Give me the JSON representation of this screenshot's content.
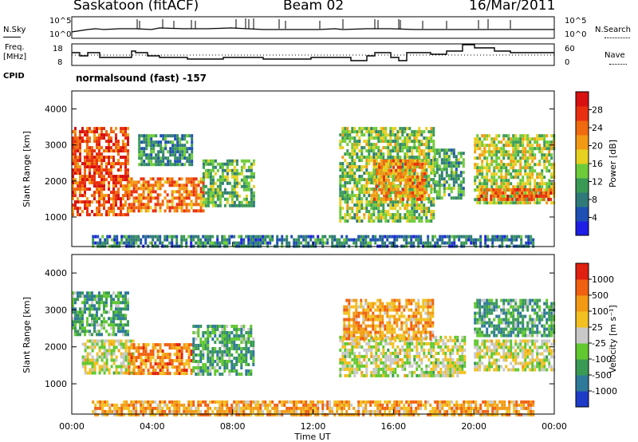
{
  "header": {
    "station": "Saskatoon (fitACF)",
    "beam": "Beam 02",
    "date": "16/Mar/2011"
  },
  "strip_labels": {
    "nsky": "N.Sky",
    "nsky_ticks": [
      "10^5",
      "10^0"
    ],
    "nsearch": "N.Search",
    "nsearch_ticks": [
      "10^5",
      "10^0"
    ],
    "freq": "Freq.",
    "freq_unit": "[MHz]",
    "freq_ticks": [
      "18",
      "8"
    ],
    "nave": "Nave",
    "nave_ticks": [
      "60",
      "0"
    ],
    "cpid": "CPID",
    "cpid_text": "normalsound (fast) -157"
  },
  "chart_data": [
    {
      "type": "heatmap",
      "name": "power-panel",
      "xlabel": "",
      "ylabel": "Slant Range [km]",
      "yticks": [
        "4000",
        "3000",
        "2000",
        "1000"
      ],
      "ylim": [
        180,
        4500
      ],
      "xlim_hours": [
        0,
        24
      ],
      "colorbar": {
        "label": "Power [dB]",
        "ticks": [
          "28",
          "24",
          "20",
          "16",
          "12",
          "8",
          "4"
        ],
        "colors": [
          "#1e1ee6",
          "#1e50b4",
          "#2f7a78",
          "#3a9a55",
          "#6ecb3a",
          "#e6d020",
          "#f29a14",
          "#f06a10",
          "#e83010",
          "#d81010"
        ]
      },
      "regions": [
        {
          "t0": 0.0,
          "t1": 2.8,
          "r0": 1100,
          "r1": 3500,
          "level": 0.8
        },
        {
          "t0": 2.8,
          "t1": 6.5,
          "r0": 1200,
          "r1": 2100,
          "level": 0.72
        },
        {
          "t0": 6.5,
          "t1": 9.0,
          "r0": 1300,
          "r1": 2600,
          "level": 0.4
        },
        {
          "t0": 3.3,
          "t1": 6.0,
          "r0": 2500,
          "r1": 3300,
          "level": 0.3
        },
        {
          "t0": 13.3,
          "t1": 18.0,
          "r0": 900,
          "r1": 3500,
          "level": 0.45
        },
        {
          "t0": 15.0,
          "t1": 17.5,
          "r0": 1500,
          "r1": 2600,
          "level": 0.68
        },
        {
          "t0": 18.0,
          "t1": 19.5,
          "r0": 1500,
          "r1": 2900,
          "level": 0.35
        },
        {
          "t0": 20.0,
          "t1": 24.0,
          "r0": 1400,
          "r1": 3300,
          "level": 0.5
        },
        {
          "t0": 20.2,
          "t1": 23.8,
          "r0": 1500,
          "r1": 1800,
          "level": 0.78
        },
        {
          "t0": 1.0,
          "t1": 23.0,
          "r0": 200,
          "r1": 500,
          "level": 0.25
        }
      ]
    },
    {
      "type": "heatmap",
      "name": "velocity-panel",
      "xlabel": "Time UT",
      "ylabel": "Slant Range [km]",
      "yticks": [
        "4000",
        "3000",
        "2000",
        "1000"
      ],
      "xticks": [
        "00:00",
        "04:00",
        "08:00",
        "12:00",
        "16:00",
        "20:00",
        "00:00"
      ],
      "ylim": [
        180,
        4500
      ],
      "xlim_hours": [
        0,
        24
      ],
      "colorbar": {
        "label": "Velocity [m s⁻¹]",
        "ticks": [
          "1000",
          "500",
          "100",
          "25",
          "-25",
          "-100",
          "-500",
          "-1000"
        ],
        "colors": [
          "#1e3cc8",
          "#2f7a9a",
          "#3a9a55",
          "#62c830",
          "#c8c8c8",
          "#f2c020",
          "#f29a14",
          "#f06010",
          "#e02010"
        ]
      },
      "regions": [
        {
          "t0": 0.0,
          "t1": 2.8,
          "r0": 2300,
          "r1": 3500,
          "level": 0.3
        },
        {
          "t0": 0.5,
          "t1": 3.0,
          "r0": 1300,
          "r1": 2200,
          "level": 0.5
        },
        {
          "t0": 2.8,
          "t1": 6.0,
          "r0": 1300,
          "r1": 2100,
          "level": 0.75
        },
        {
          "t0": 6.0,
          "t1": 9.0,
          "r0": 1300,
          "r1": 2600,
          "level": 0.3
        },
        {
          "t0": 13.3,
          "t1": 19.5,
          "r0": 1200,
          "r1": 2300,
          "level": 0.5
        },
        {
          "t0": 13.5,
          "t1": 18.0,
          "r0": 2200,
          "r1": 3300,
          "level": 0.7
        },
        {
          "t0": 20.0,
          "t1": 24.0,
          "r0": 1400,
          "r1": 2200,
          "level": 0.5
        },
        {
          "t0": 20.0,
          "t1": 24.0,
          "r0": 2300,
          "r1": 3300,
          "level": 0.3
        },
        {
          "t0": 1.0,
          "t1": 23.0,
          "r0": 200,
          "r1": 550,
          "level": 0.7
        }
      ]
    }
  ]
}
